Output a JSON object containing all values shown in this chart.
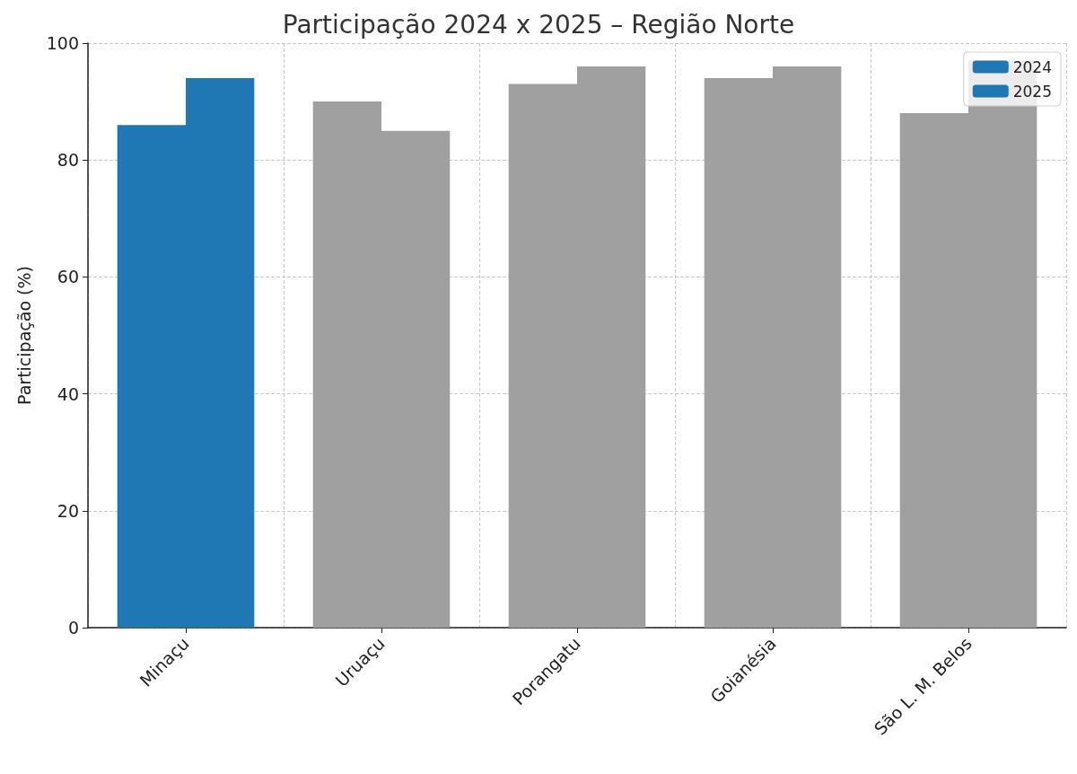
{
  "chart_data": {
    "type": "bar",
    "title": "Participação 2024 x 2025 – Região Norte",
    "ylabel": "Participação (%)",
    "categories": [
      "Minaçu",
      "Uruaçu",
      "Porangatu",
      "Goianésia",
      "São L. M. Belos"
    ],
    "series": [
      {
        "name": "2024",
        "color": "#1f77b4",
        "colors": [
          "#1f77b4",
          "#a0a0a0",
          "#a0a0a0",
          "#a0a0a0",
          "#a0a0a0"
        ],
        "values": [
          86,
          90,
          93,
          94,
          88
        ]
      },
      {
        "name": "2025",
        "color": "#1f77b4",
        "colors": [
          "#1f77b4",
          "#a0a0a0",
          "#a0a0a0",
          "#a0a0a0",
          "#a0a0a0"
        ],
        "values": [
          94,
          85,
          96,
          96,
          97
        ]
      }
    ],
    "ylim": [
      0,
      100
    ],
    "yticks": [
      0,
      20,
      40,
      60,
      80,
      100
    ],
    "grid": true,
    "legend": "top right"
  }
}
